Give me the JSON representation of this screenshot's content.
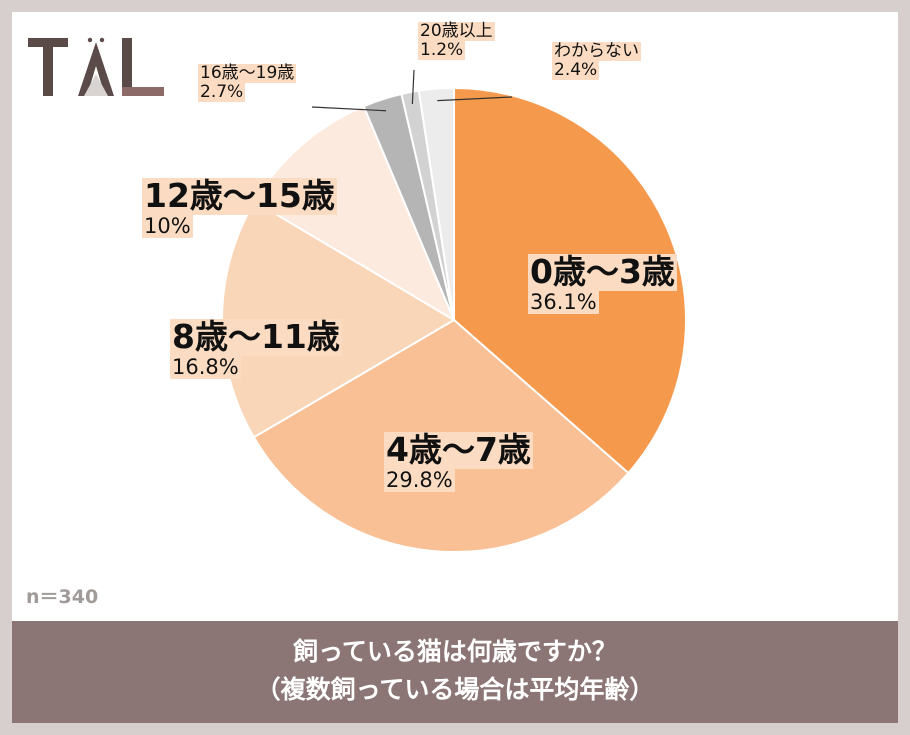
{
  "logo": {
    "text": "TAL"
  },
  "note": "n＝340",
  "footer": {
    "line1": "飼っている猫は何歳ですか？",
    "line2": "（複数飼っている場合は平均年齢）"
  },
  "colors": {
    "s0": "#f59a4d",
    "s1": "#f8c094",
    "s2": "#fad6b8",
    "s3": "#fdeade",
    "s4": "#b5b5b5",
    "s5": "#d2d2d2",
    "s6": "#ececec"
  },
  "chart_data": {
    "type": "pie",
    "title": "飼っている猫は何歳ですか？（複数飼っている場合は平均年齢）",
    "slices": [
      {
        "label": "0歳～3歳",
        "value": 36.1,
        "value_label": "36.1%"
      },
      {
        "label": "4歳～7歳",
        "value": 29.8,
        "value_label": "29.8%"
      },
      {
        "label": "8歳～11歳",
        "value": 16.8,
        "value_label": "16.8%"
      },
      {
        "label": "12歳～15歳",
        "value": 10,
        "value_label": "10%"
      },
      {
        "label": "16歳～19歳",
        "value": 2.7,
        "value_label": "2.7%"
      },
      {
        "label": "20歳以上",
        "value": 1.2,
        "value_label": "1.2%"
      },
      {
        "label": "わからない",
        "value": 2.4,
        "value_label": "2.4%"
      }
    ]
  }
}
